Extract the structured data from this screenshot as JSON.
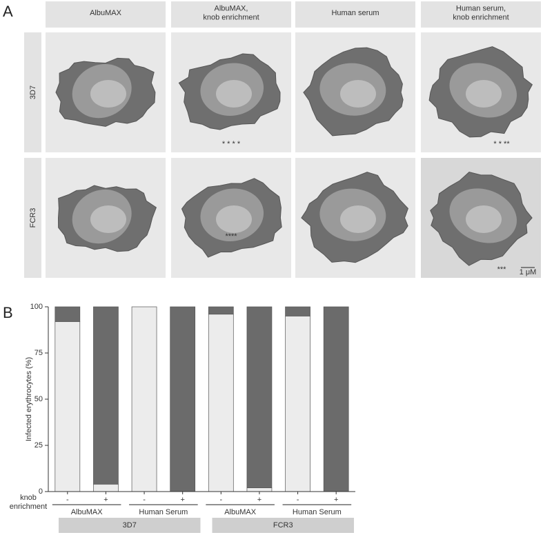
{
  "panel_a": {
    "label": "A",
    "columns": [
      "AlbuMAX",
      "AlbuMAX,\nknob enrichment",
      "Human serum",
      "Human serum,\nknob enrichment"
    ],
    "rows": [
      {
        "label": "3D7",
        "markers": [
          null,
          "*    *    *    *",
          null,
          "* * **"
        ]
      },
      {
        "label": "FCR3",
        "markers": [
          null,
          "****",
          null,
          "***"
        ]
      }
    ],
    "scale_bar": "1 μM"
  },
  "chart_data": {
    "type": "bar",
    "label": "B",
    "stacked": true,
    "ylabel": "Infected erythrocytes (%)",
    "category_label": "knob enrichment",
    "categories": [
      "-",
      "+",
      "-",
      "+",
      "-",
      "+",
      "-",
      "+"
    ],
    "groups": [
      "AlbuMAX",
      "Human Serum",
      "AlbuMAX",
      "Human Serum"
    ],
    "strains": [
      "3D7",
      "FCR3"
    ],
    "series": [
      {
        "color": "#ececec",
        "values": [
          92,
          4,
          100,
          0,
          96,
          2,
          95,
          0
        ]
      },
      {
        "color": "#6b6b6b",
        "values": [
          8,
          96,
          0,
          100,
          4,
          98,
          5,
          100
        ]
      }
    ],
    "ylim": [
      0,
      100
    ],
    "yticks": [
      0,
      25,
      50,
      75,
      100
    ]
  }
}
